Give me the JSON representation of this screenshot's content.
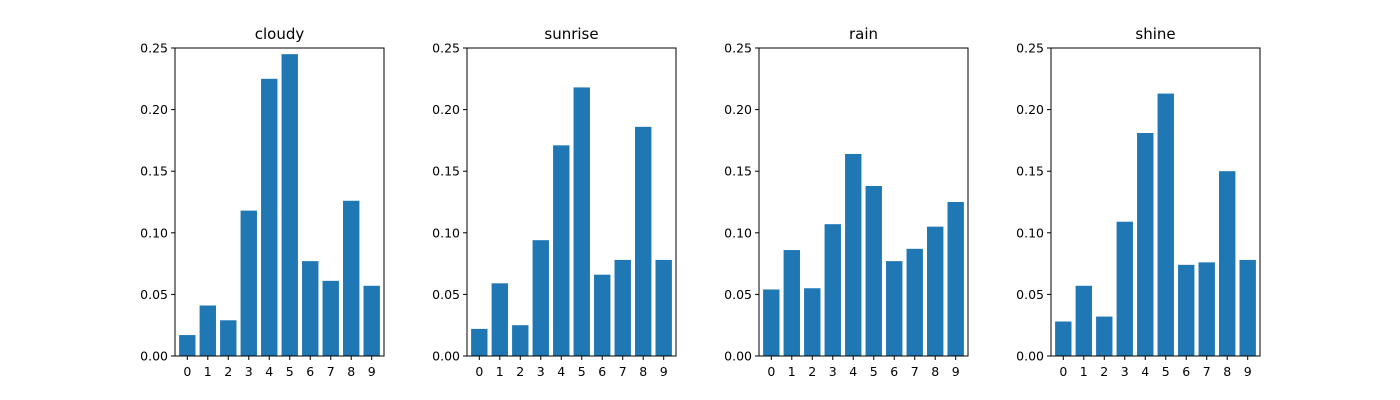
{
  "chart_data": [
    {
      "type": "bar",
      "title": "cloudy",
      "categories": [
        "0",
        "1",
        "2",
        "3",
        "4",
        "5",
        "6",
        "7",
        "8",
        "9"
      ],
      "values": [
        0.017,
        0.041,
        0.029,
        0.118,
        0.225,
        0.245,
        0.077,
        0.061,
        0.126,
        0.057
      ],
      "ylim": [
        0,
        0.25
      ],
      "yticks": [
        "0.00",
        "0.05",
        "0.10",
        "0.15",
        "0.20",
        "0.25"
      ],
      "bar_color": "#1f77b4"
    },
    {
      "type": "bar",
      "title": "sunrise",
      "categories": [
        "0",
        "1",
        "2",
        "3",
        "4",
        "5",
        "6",
        "7",
        "8",
        "9"
      ],
      "values": [
        0.022,
        0.059,
        0.025,
        0.094,
        0.171,
        0.218,
        0.066,
        0.078,
        0.186,
        0.078
      ],
      "ylim": [
        0,
        0.25
      ],
      "yticks": [
        "0.00",
        "0.05",
        "0.10",
        "0.15",
        "0.20",
        "0.25"
      ],
      "bar_color": "#1f77b4"
    },
    {
      "type": "bar",
      "title": "rain",
      "categories": [
        "0",
        "1",
        "2",
        "3",
        "4",
        "5",
        "6",
        "7",
        "8",
        "9"
      ],
      "values": [
        0.054,
        0.086,
        0.055,
        0.107,
        0.164,
        0.138,
        0.077,
        0.087,
        0.105,
        0.125
      ],
      "ylim": [
        0,
        0.25
      ],
      "yticks": [
        "0.00",
        "0.05",
        "0.10",
        "0.15",
        "0.20",
        "0.25"
      ],
      "bar_color": "#1f77b4"
    },
    {
      "type": "bar",
      "title": "shine",
      "categories": [
        "0",
        "1",
        "2",
        "3",
        "4",
        "5",
        "6",
        "7",
        "8",
        "9"
      ],
      "values": [
        0.028,
        0.057,
        0.032,
        0.109,
        0.181,
        0.213,
        0.074,
        0.076,
        0.15,
        0.078
      ],
      "ylim": [
        0,
        0.25
      ],
      "yticks": [
        "0.00",
        "0.05",
        "0.10",
        "0.15",
        "0.20",
        "0.25"
      ],
      "bar_color": "#1f77b4"
    }
  ]
}
